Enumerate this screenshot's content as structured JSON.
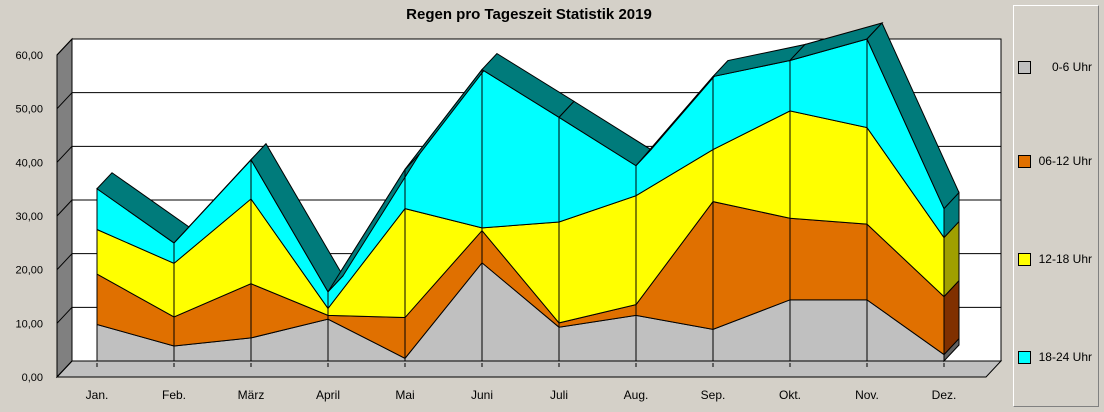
{
  "chart_data": {
    "type": "area",
    "stacked": true,
    "title": "Regen pro Tageszeit Statistik 2019",
    "categories": [
      "Jan.",
      "Feb.",
      "März",
      "April",
      "Mai",
      "Juni",
      "Juli",
      "Aug.",
      "Sep.",
      "Okt.",
      "Nov.",
      "Dez."
    ],
    "ylim": [
      0,
      60
    ],
    "yticks": [
      "0,00",
      "10,00",
      "20,00",
      "30,00",
      "40,00",
      "50,00",
      "60,00"
    ],
    "grid": true,
    "legend_position": "right",
    "series": [
      {
        "name": "0-6 Uhr",
        "color": "#c0c0c0",
        "values": [
          6.8,
          2.8,
          4.3,
          7.8,
          0.5,
          18.3,
          6.3,
          8.5,
          5.9,
          11.4,
          11.4,
          1.2
        ]
      },
      {
        "name": "06-12 Uhr",
        "color": "#e07000",
        "values": [
          9.4,
          5.4,
          10.1,
          0.7,
          7.6,
          6.0,
          0.8,
          2.0,
          23.8,
          15.2,
          14.1,
          10.8
        ]
      },
      {
        "name": "12-18 Uhr",
        "color": "#ffff00",
        "values": [
          8.3,
          10.0,
          15.8,
          1.3,
          20.3,
          0.5,
          18.8,
          20.3,
          9.7,
          20.0,
          18.0,
          11.0
        ]
      },
      {
        "name": "18-24 Uhr",
        "color": "#00ffff",
        "values": [
          7.6,
          3.8,
          7.3,
          3.1,
          7.3,
          29.5,
          19.5,
          5.6,
          13.6,
          9.4,
          16.5,
          5.4
        ]
      }
    ]
  },
  "colors": {
    "top_band": "#007b7b",
    "left_wall": "#808080",
    "plot_bg": "#ffffff"
  }
}
